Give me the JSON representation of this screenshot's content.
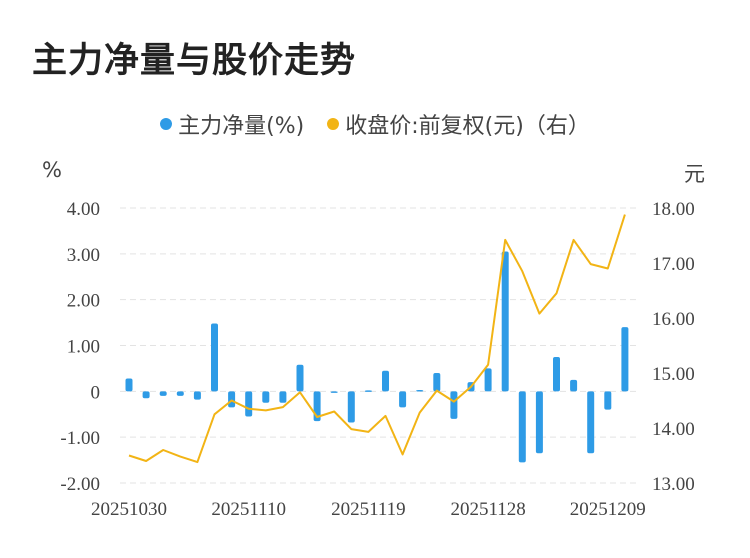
{
  "title": "主力净量与股价走势",
  "colors": {
    "bar": "#2e9be6",
    "line": "#f2b415",
    "grid": "#e3e3e3"
  },
  "chart_data": {
    "type": "bar+line",
    "legend": [
      {
        "name": "主力净量(%)",
        "color": "#2e9be6"
      },
      {
        "name": "收盘价:前复权(元)（右）",
        "color": "#f2b415"
      }
    ],
    "legend_position": "top-center",
    "left_unit": "%",
    "right_unit": "元",
    "left_ylim": [
      -2,
      4
    ],
    "right_ylim": [
      13,
      18
    ],
    "left_ticks": [
      "4.00",
      "3.00",
      "2.00",
      "1.00",
      "0",
      "-1.00",
      "-2.00"
    ],
    "right_ticks": [
      "18.00",
      "17.00",
      "16.00",
      "15.00",
      "14.00",
      "13.00"
    ],
    "x_tick_labels": [
      "20251030",
      "20251110",
      "20251119",
      "20251128",
      "20251209"
    ],
    "x_tick_indices": [
      0,
      7,
      14,
      21,
      28
    ],
    "grid": "horizontal dashed",
    "series": [
      {
        "name": "主力净量(%)",
        "axis": "left",
        "type": "bar",
        "values": [
          0.28,
          -0.15,
          -0.1,
          -0.1,
          -0.18,
          1.48,
          -0.35,
          -0.55,
          -0.25,
          -0.25,
          0.58,
          -0.65,
          -0.03,
          -0.68,
          0.02,
          0.45,
          -0.35,
          0.03,
          0.4,
          -0.6,
          0.2,
          0.5,
          3.05,
          -1.55,
          -1.35,
          0.75,
          0.25,
          -1.35,
          -0.4,
          1.4
        ]
      },
      {
        "name": "收盘价:前复权(元)（右）",
        "axis": "right",
        "type": "line",
        "values": [
          13.5,
          13.4,
          13.6,
          13.48,
          13.38,
          14.25,
          14.5,
          14.35,
          14.32,
          14.38,
          14.65,
          14.2,
          14.3,
          13.98,
          13.93,
          14.22,
          13.52,
          14.28,
          14.68,
          14.48,
          14.75,
          15.15,
          17.42,
          16.85,
          16.08,
          16.45,
          17.42,
          16.98,
          16.9,
          17.88
        ]
      }
    ]
  }
}
